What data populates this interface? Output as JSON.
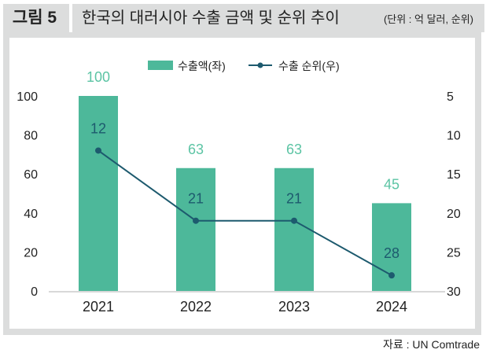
{
  "figure_label": "그림 5",
  "title": "한국의 대러시아 수출 금액 및 순위 추이",
  "unit": "(단위 : 억 달러, 순위)",
  "source": "자료 : UN Comtrade",
  "chart_data": {
    "type": "bar+line",
    "categories": [
      "2021",
      "2022",
      "2023",
      "2024"
    ],
    "series": [
      {
        "name": "수출액(좌)",
        "type": "bar",
        "axis": "left",
        "values": [
          100,
          63,
          63,
          45
        ],
        "color": "#4db89a",
        "label_color": "#5cc4a4"
      },
      {
        "name": "수출 순위(우)",
        "type": "line",
        "axis": "right",
        "values": [
          12,
          21,
          21,
          28
        ],
        "color": "#1d5a6e"
      }
    ],
    "left_axis": {
      "range": [
        0,
        100
      ],
      "ticks": [
        "0",
        "20",
        "40",
        "60",
        "80",
        "100"
      ]
    },
    "right_axis": {
      "range": [
        5,
        30
      ],
      "inverted": true,
      "ticks": [
        "5",
        "10",
        "15",
        "20",
        "25",
        "30"
      ]
    },
    "grid": false,
    "legend": "top-center"
  }
}
